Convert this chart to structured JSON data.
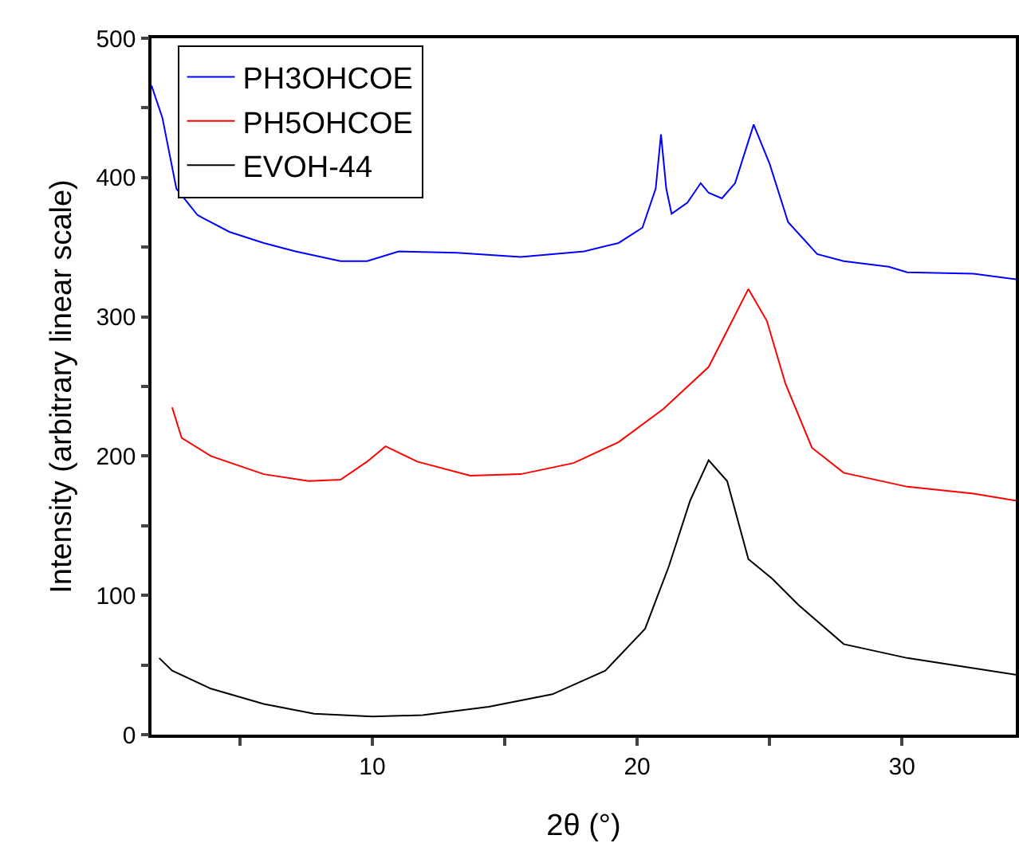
{
  "chart_data": {
    "type": "line",
    "xlabel": "2θ (°)",
    "ylabel": "Intensity (arbitrary linear scale)",
    "xlim": [
      1.66,
      34.3
    ],
    "xticks": [
      {
        "value": 5,
        "label": null
      },
      10,
      {
        "value": 15,
        "label": null
      },
      20,
      {
        "value": 25,
        "label": null
      },
      30
    ],
    "ylim": [
      0,
      500
    ],
    "yticks": [
      0,
      {
        "value": 50,
        "label": null
      },
      100,
      {
        "value": 150,
        "label": null
      },
      200,
      {
        "value": 250,
        "label": null
      },
      300,
      {
        "value": 350,
        "label": null
      },
      400,
      {
        "value": 450,
        "label": null
      },
      500
    ],
    "grid": false,
    "legend": "top left",
    "marker": "none",
    "line_style": "solid",
    "series": [
      {
        "name": "PH3OHCOE",
        "color": "#0000ff",
        "x": [
          1.66,
          2.07,
          2.6,
          3.4,
          4.6,
          5.9,
          7.1,
          8.8,
          9.8,
          11,
          13.2,
          15.6,
          18.0,
          19.3,
          20.2,
          20.7,
          20.9,
          21.1,
          21.3,
          21.9,
          22.4,
          22.7,
          23.2,
          23.7,
          24.4,
          25.0,
          25.7,
          26.8,
          27.8,
          29.5,
          30.2,
          32.7,
          34.3
        ],
        "values": [
          466,
          443,
          392,
          373,
          361,
          353,
          347,
          340,
          340,
          347,
          346,
          343,
          347,
          353,
          364,
          392,
          431,
          392,
          374,
          382,
          396,
          389,
          385,
          396,
          438,
          410,
          368,
          345,
          340,
          336,
          332,
          331,
          327
        ]
      },
      {
        "name": "PH5OHCOE",
        "color": "#ff0000",
        "x": [
          2.44,
          2.8,
          3.9,
          5.9,
          7.6,
          8.8,
          9.8,
          10.5,
          11.7,
          13.7,
          15.6,
          17.6,
          19.3,
          21.0,
          22.7,
          23.4,
          24.2,
          24.9,
          25.6,
          26.6,
          27.8,
          30.2,
          32.7,
          34.3
        ],
        "values": [
          235,
          213,
          200,
          187,
          182,
          183,
          196,
          207,
          196,
          186,
          187,
          195,
          210,
          234,
          264,
          290,
          320,
          297,
          252,
          206,
          188,
          178,
          173,
          168
        ]
      },
      {
        "name": "EVOH-44",
        "color": "#000000",
        "x": [
          1.95,
          2.44,
          3.9,
          5.9,
          7.8,
          10,
          11.9,
          14.4,
          16.8,
          18.8,
          20.3,
          21.2,
          22.0,
          22.7,
          23.4,
          24.2,
          25.1,
          26.1,
          27.8,
          30.2,
          31.9,
          34.3
        ],
        "values": [
          55,
          46,
          33,
          22,
          15,
          13,
          14,
          20,
          29,
          46,
          76,
          121,
          168,
          197,
          182,
          126,
          112,
          93,
          65,
          55,
          50,
          43
        ]
      }
    ]
  }
}
